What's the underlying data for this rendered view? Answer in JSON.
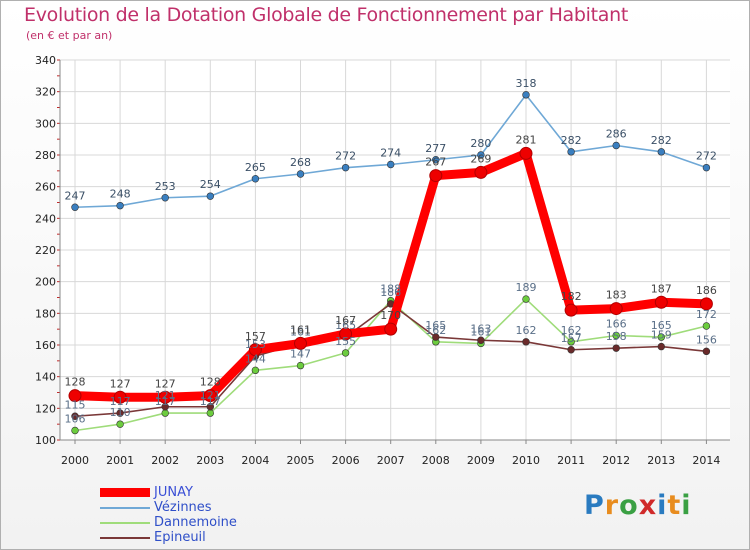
{
  "header": {
    "title": "Evolution de la Dotation Globale de Fonctionnement par Habitant",
    "subtitle": "(en € et par an)"
  },
  "brand": {
    "letters": [
      "P",
      "r",
      "o",
      "x",
      "i",
      "t",
      "i"
    ],
    "colors": [
      "#2a7bc0",
      "#e88c1e",
      "#3aa043",
      "#d02a2a",
      "#2a7bc0",
      "#e88c1e",
      "#3aa043"
    ]
  },
  "chart_data": {
    "type": "line",
    "title": "Evolution de la Dotation Globale de Fonctionnement par Habitant",
    "subtitle": "(en € et par an)",
    "xlabel": "",
    "ylabel": "",
    "ylim": [
      100,
      340
    ],
    "yticks": [
      100,
      120,
      140,
      160,
      180,
      200,
      220,
      240,
      260,
      280,
      300,
      320,
      340
    ],
    "x": [
      2000,
      2001,
      2002,
      2003,
      2004,
      2005,
      2006,
      2007,
      2008,
      2009,
      2010,
      2011,
      2012,
      2013,
      2014
    ],
    "grid": true,
    "legend": "bottom-left",
    "series": [
      {
        "name": "Vézinnes",
        "color": "#6fa8d6",
        "dot": "#3a7fc0",
        "label_color": "#3a4f66",
        "values": [
          247,
          248,
          253,
          254,
          265,
          268,
          272,
          274,
          277,
          280,
          318,
          282,
          286,
          282,
          272
        ]
      },
      {
        "name": "Dannemoine",
        "color": "#9fdc7a",
        "dot": "#6ccc3e",
        "label_color": "#5a6f88",
        "values": [
          106,
          110,
          117,
          117,
          144,
          147,
          155,
          188,
          162,
          161,
          189,
          162,
          166,
          165,
          172
        ]
      },
      {
        "name": "Epineuil",
        "color": "#7a3838",
        "dot": "#6a2a2a",
        "label_color": "#5a6f88",
        "values": [
          115,
          117,
          121,
          121,
          153,
          161,
          165,
          186,
          165,
          163,
          162,
          157,
          158,
          159,
          156
        ]
      },
      {
        "name": "JUNAY",
        "color": "#ff0000",
        "dot": "#ee0000",
        "label_color": "#444444",
        "values": [
          128,
          127,
          127,
          128,
          157,
          161,
          167,
          170,
          267,
          269,
          281,
          182,
          183,
          187,
          186
        ]
      }
    ],
    "legend_order": [
      "JUNAY",
      "Vézinnes",
      "Dannemoine",
      "Epineuil"
    ]
  }
}
